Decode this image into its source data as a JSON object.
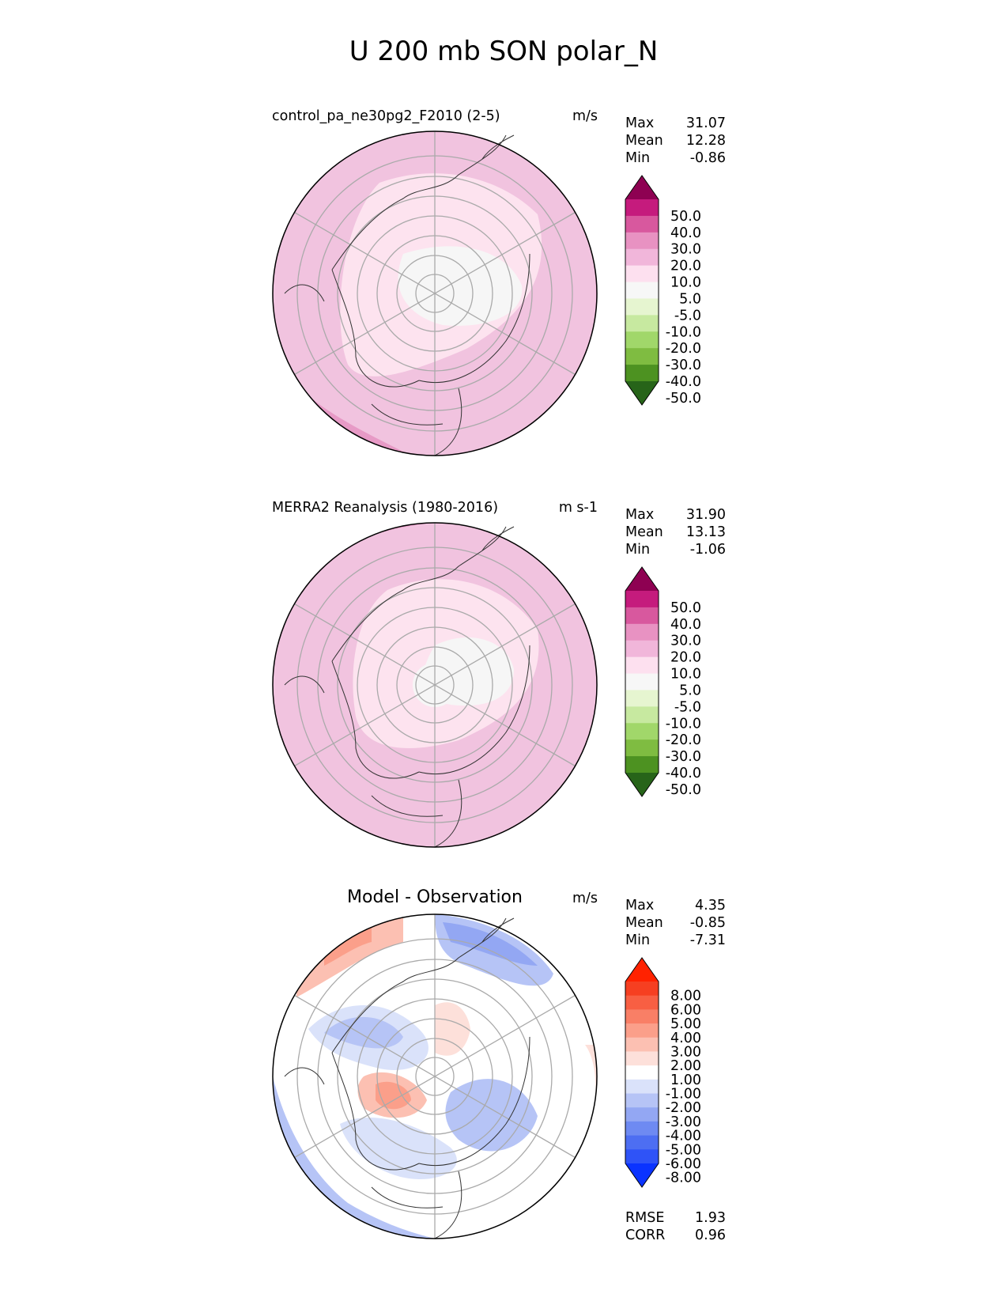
{
  "title": "U 200 mb SON polar_N",
  "panels": [
    {
      "id": "test",
      "name": "control_pa_ne30pg2_F2010 (2-5)",
      "units": "m/s",
      "stats": [
        {
          "label": "Max",
          "value": "31.07"
        },
        {
          "label": "Mean",
          "value": "12.28"
        },
        {
          "label": "Min",
          "value": "-0.86"
        }
      ]
    },
    {
      "id": "ref",
      "name": "MERRA2 Reanalysis (1980-2016)",
      "units": "m s-1",
      "stats": [
        {
          "label": "Max",
          "value": "31.90"
        },
        {
          "label": "Mean",
          "value": "13.13"
        },
        {
          "label": "Min",
          "value": "-1.06"
        }
      ]
    },
    {
      "id": "diff",
      "name": "Model - Observation",
      "units": "m/s",
      "stats": [
        {
          "label": "Max",
          "value": "4.35"
        },
        {
          "label": "Mean",
          "value": "-0.85"
        },
        {
          "label": "Min",
          "value": "-7.31"
        }
      ],
      "extra_stats": [
        {
          "label": "RMSE",
          "value": "1.93"
        },
        {
          "label": "CORR",
          "value": "0.96"
        }
      ]
    }
  ],
  "chart_data": [
    {
      "type": "heatmap",
      "projection": "north polar stereographic",
      "title": "control_pa_ne30pg2_F2010 (2-5)",
      "units": "m/s",
      "colorbar": {
        "levels": [
          "-50.0",
          "-40.0",
          "-30.0",
          "-20.0",
          "-10.0",
          "-5.0",
          "5.0",
          "10.0",
          "20.0",
          "30.0",
          "40.0",
          "50.0"
        ],
        "colors": [
          "#276419",
          "#4d9221",
          "#7fbc41",
          "#a1d76a",
          "#c7e9a0",
          "#e6f5d0",
          "#f7f7f7",
          "#fde0ef",
          "#f1b6da",
          "#e892c2",
          "#d8589e",
          "#c51b7d",
          "#8e0152"
        ],
        "extend": "both"
      },
      "max": 31.07,
      "mean": 12.28,
      "min": -0.86
    },
    {
      "type": "heatmap",
      "projection": "north polar stereographic",
      "title": "MERRA2 Reanalysis (1980-2016)",
      "units": "m s-1",
      "colorbar": {
        "levels": [
          "-50.0",
          "-40.0",
          "-30.0",
          "-20.0",
          "-10.0",
          "-5.0",
          "5.0",
          "10.0",
          "20.0",
          "30.0",
          "40.0",
          "50.0"
        ],
        "colors": [
          "#276419",
          "#4d9221",
          "#7fbc41",
          "#a1d76a",
          "#c7e9a0",
          "#e6f5d0",
          "#f7f7f7",
          "#fde0ef",
          "#f1b6da",
          "#e892c2",
          "#d8589e",
          "#c51b7d",
          "#8e0152"
        ],
        "extend": "both"
      },
      "max": 31.9,
      "mean": 13.13,
      "min": -1.06
    },
    {
      "type": "heatmap",
      "projection": "north polar stereographic",
      "title": "Model - Observation",
      "units": "m/s",
      "colorbar": {
        "levels": [
          "-8.00",
          "-6.00",
          "-5.00",
          "-4.00",
          "-3.00",
          "-2.00",
          "-1.00",
          "1.00",
          "2.00",
          "3.00",
          "4.00",
          "5.00",
          "6.00",
          "8.00"
        ],
        "colors": [
          "#0a33ff",
          "#2f53f7",
          "#4d6ef2",
          "#6e8af2",
          "#93a7f3",
          "#b6c4f6",
          "#dae2fa",
          "#ffffff",
          "#fde0da",
          "#fcc0b2",
          "#fb9f8a",
          "#f97f66",
          "#f85f43",
          "#f63f21",
          "#ff2200"
        ],
        "extend": "both"
      },
      "max": 4.35,
      "mean": -0.85,
      "min": -7.31,
      "rmse": 1.93,
      "corr": 0.96
    }
  ]
}
